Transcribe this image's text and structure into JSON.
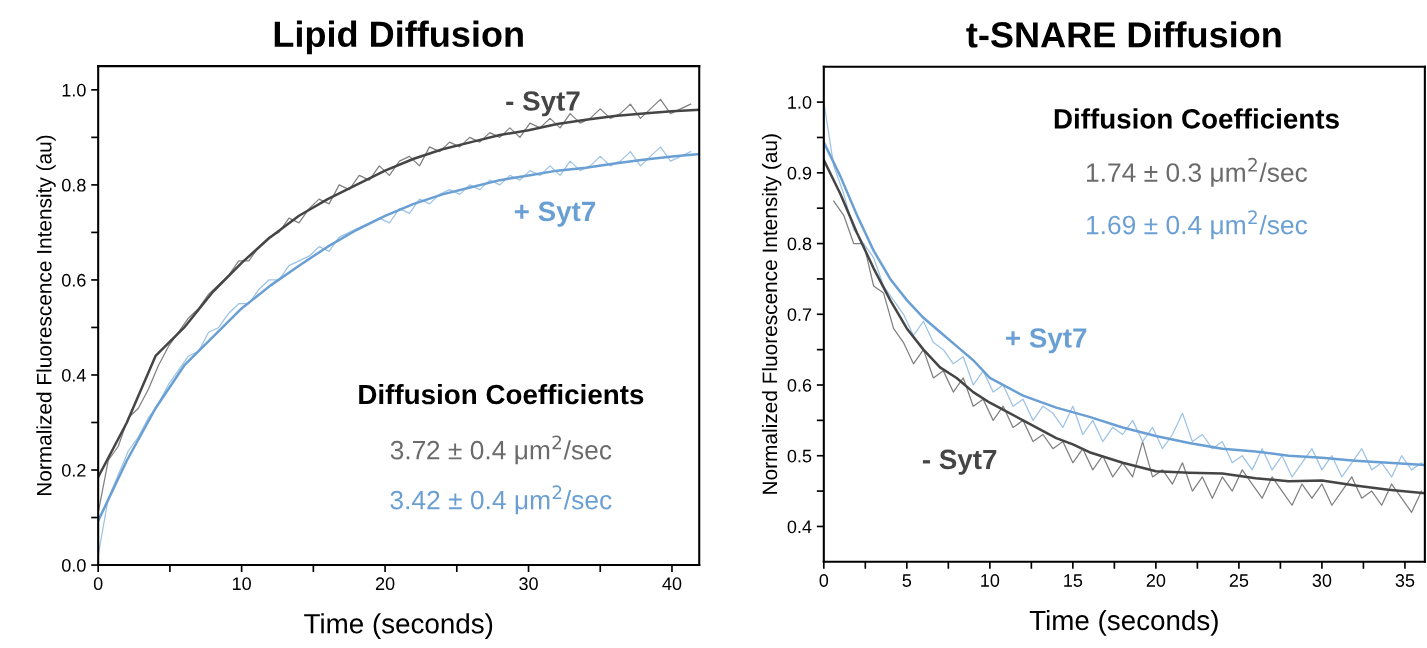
{
  "chart_data": [
    {
      "type": "line",
      "title": "Lipid Diffusion",
      "xlabel": "Time (seconds)",
      "ylabel": "Normalized Fluorescence Intensity (au)",
      "xlim": [
        0,
        41.9
      ],
      "ylim": [
        0,
        1.05
      ],
      "xticks": [
        0,
        {
          "value": 5,
          "label": null
        },
        10,
        {
          "value": 15,
          "label": null
        },
        20,
        {
          "value": 25,
          "label": null
        },
        30,
        {
          "value": 35,
          "label": null
        },
        40
      ],
      "yticks": [
        {
          "value": 0,
          "label": "0.0"
        },
        {
          "value": 0.1,
          "label": null
        },
        0.2,
        {
          "value": 0.3,
          "label": null
        },
        0.4,
        {
          "value": 0.5,
          "label": null
        },
        0.6,
        {
          "value": 0.7,
          "label": null
        },
        0.8,
        {
          "value": 0.9,
          "label": null
        },
        {
          "value": 1.0,
          "label": "1.0"
        }
      ],
      "annotations": [
        "Diffusion Coefficients",
        "3.72 ± 0.4 μm$^{2}$/sec",
        "3.42 ± 0.4 μm$^{2}$/sec"
      ],
      "series": [
        {
          "color": "#808080",
          "x": [
            0,
            0.7,
            1.4,
            2.1,
            2.8,
            3.5,
            4.2,
            4.9,
            5.6,
            6.3,
            7,
            7.7,
            8.4,
            9.1,
            9.8,
            10.5,
            11.2,
            11.9,
            12.6,
            13.3,
            14,
            14.7,
            15.4,
            16.1,
            16.8,
            17.5,
            18.2,
            18.9,
            19.6,
            20.3,
            21,
            21.7,
            22.4,
            23.1,
            23.8,
            24.5,
            25.2,
            25.9,
            26.6,
            27.3,
            28,
            28.7,
            29.4,
            30.1,
            30.8,
            31.5,
            32.2,
            32.9,
            33.6,
            34.3,
            35,
            35.7,
            36.4,
            37.1,
            37.8,
            38.5,
            39.2,
            39.9,
            40.6,
            41.3
          ],
          "values": [
            0.11,
            0.22,
            0.25,
            0.31,
            0.33,
            0.37,
            0.42,
            0.46,
            0.49,
            0.52,
            0.54,
            0.57,
            0.59,
            0.61,
            0.64,
            0.64,
            0.67,
            0.69,
            0.7,
            0.73,
            0.72,
            0.75,
            0.77,
            0.76,
            0.8,
            0.79,
            0.82,
            0.81,
            0.84,
            0.82,
            0.85,
            0.86,
            0.84,
            0.88,
            0.87,
            0.89,
            0.88,
            0.9,
            0.89,
            0.91,
            0.9,
            0.92,
            0.9,
            0.93,
            0.92,
            0.94,
            0.92,
            0.95,
            0.93,
            0.94,
            0.96,
            0.94,
            0.95,
            0.97,
            0.94,
            0.96,
            0.98,
            0.95,
            0.96,
            0.97
          ]
        },
        {
          "color": "#9dc3e6",
          "x": [
            0,
            0.7,
            1.4,
            2.1,
            2.8,
            3.5,
            4.2,
            4.9,
            5.6,
            6.3,
            7,
            7.7,
            8.4,
            9.1,
            9.8,
            10.5,
            11.2,
            11.9,
            12.6,
            13.3,
            14,
            14.7,
            15.4,
            16.1,
            16.8,
            17.5,
            18.2,
            18.9,
            19.6,
            20.3,
            21,
            21.7,
            22.4,
            23.1,
            23.8,
            24.5,
            25.2,
            25.9,
            26.6,
            27.3,
            28,
            28.7,
            29.4,
            30.1,
            30.8,
            31.5,
            32.2,
            32.9,
            33.6,
            34.3,
            35,
            35.7,
            36.4,
            37.1,
            37.8,
            38.5,
            39.2,
            39.9,
            40.6,
            41.3
          ],
          "values": [
            0.02,
            0.14,
            0.19,
            0.24,
            0.27,
            0.31,
            0.34,
            0.38,
            0.41,
            0.44,
            0.45,
            0.49,
            0.5,
            0.53,
            0.55,
            0.55,
            0.58,
            0.6,
            0.6,
            0.63,
            0.64,
            0.65,
            0.67,
            0.66,
            0.69,
            0.7,
            0.71,
            0.72,
            0.73,
            0.72,
            0.75,
            0.74,
            0.77,
            0.76,
            0.78,
            0.79,
            0.78,
            0.8,
            0.79,
            0.81,
            0.8,
            0.82,
            0.81,
            0.83,
            0.82,
            0.84,
            0.82,
            0.85,
            0.83,
            0.84,
            0.86,
            0.84,
            0.85,
            0.87,
            0.84,
            0.86,
            0.88,
            0.85,
            0.86,
            0.87
          ]
        },
        {
          "name": "- Syt7",
          "color": "#454545",
          "x": [
            0,
            2,
            4,
            6,
            8,
            10,
            12,
            14,
            16,
            18,
            20,
            22,
            24,
            26,
            28,
            30,
            32,
            34,
            36,
            38,
            40,
            41.9
          ],
          "values": [
            0.185,
            0.3,
            0.44,
            0.5,
            0.575,
            0.636,
            0.69,
            0.735,
            0.77,
            0.8,
            0.83,
            0.855,
            0.875,
            0.89,
            0.905,
            0.915,
            0.928,
            0.937,
            0.945,
            0.95,
            0.955,
            0.958
          ]
        },
        {
          "name": "+ Syt7",
          "color": "#6a9fd4",
          "x": [
            0,
            2,
            4,
            6,
            8,
            10,
            12,
            14,
            16,
            18,
            20,
            22,
            24,
            26,
            28,
            30,
            32,
            34,
            36,
            38,
            40,
            41.9
          ],
          "values": [
            0.093,
            0.22,
            0.33,
            0.42,
            0.48,
            0.54,
            0.588,
            0.63,
            0.67,
            0.705,
            0.735,
            0.76,
            0.78,
            0.795,
            0.81,
            0.82,
            0.83,
            0.836,
            0.845,
            0.853,
            0.86,
            0.865
          ]
        }
      ]
    },
    {
      "type": "line",
      "title": "t-SNARE Diffusion",
      "xlabel": "Time (seconds)",
      "ylabel": "Normalized Fluorescence Intensity (au)",
      "xlim": [
        0,
        36.2
      ],
      "ylim": [
        0.35,
        1.05
      ],
      "xticks": [
        0,
        {
          "value": 2.5,
          "label": null
        },
        5,
        {
          "value": 7.5,
          "label": null
        },
        10,
        {
          "value": 12.5,
          "label": null
        },
        15,
        {
          "value": 17.5,
          "label": null
        },
        20,
        {
          "value": 22.5,
          "label": null
        },
        25,
        {
          "value": 27.5,
          "label": null
        },
        30,
        {
          "value": 32.5,
          "label": null
        },
        35
      ],
      "yticks": [
        0.4,
        {
          "value": 0.45,
          "label": null
        },
        0.5,
        {
          "value": 0.55,
          "label": null
        },
        0.6,
        {
          "value": 0.65,
          "label": null
        },
        0.7,
        {
          "value": 0.75,
          "label": null
        },
        0.8,
        {
          "value": 0.85,
          "label": null
        },
        0.9,
        {
          "value": 0.95,
          "label": null
        },
        {
          "value": 1.0,
          "label": "1.0"
        }
      ],
      "annotations": [
        "Diffusion Coefficients",
        "1.74 ± 0.3 μm$^{2}$/sec",
        "1.69 ± 0.4 μm$^{2}$/sec"
      ],
      "series": [
        {
          "color": "#808080",
          "x": [
            0.6,
            1.2,
            1.8,
            2.4,
            3,
            3.6,
            4.2,
            4.8,
            5.4,
            6,
            6.6,
            7.2,
            7.8,
            8.4,
            9,
            9.6,
            10.2,
            10.8,
            11.4,
            12,
            12.6,
            13.2,
            13.8,
            14.4,
            15,
            15.6,
            16.2,
            16.8,
            17.4,
            18,
            18.6,
            19.2,
            19.8,
            20.4,
            21,
            21.6,
            22.2,
            22.8,
            23.4,
            24,
            24.6,
            25.2,
            25.8,
            26.4,
            27,
            27.6,
            28.2,
            28.8,
            29.4,
            30,
            30.6,
            31.2,
            31.8,
            32.4,
            33,
            33.6,
            34.2,
            34.8,
            35.4,
            36
          ],
          "values": [
            0.86,
            0.84,
            0.8,
            0.8,
            0.74,
            0.73,
            0.68,
            0.66,
            0.63,
            0.65,
            0.61,
            0.62,
            0.59,
            0.61,
            0.57,
            0.58,
            0.55,
            0.57,
            0.54,
            0.55,
            0.52,
            0.53,
            0.51,
            0.52,
            0.49,
            0.51,
            0.48,
            0.5,
            0.47,
            0.49,
            0.47,
            0.52,
            0.47,
            0.48,
            0.46,
            0.49,
            0.45,
            0.47,
            0.44,
            0.47,
            0.45,
            0.48,
            0.46,
            0.44,
            0.47,
            0.45,
            0.43,
            0.46,
            0.44,
            0.46,
            0.43,
            0.45,
            0.47,
            0.44,
            0.45,
            0.43,
            0.46,
            0.44,
            0.42,
            0.45
          ]
        },
        {
          "color": "#9dc3e6",
          "x": [
            0,
            0.6,
            1.2,
            1.8,
            2.4,
            3,
            3.6,
            4.2,
            4.8,
            5.4,
            6,
            6.6,
            7.2,
            7.8,
            8.4,
            9,
            9.6,
            10.2,
            10.8,
            11.4,
            12,
            12.6,
            13.2,
            13.8,
            14.4,
            15,
            15.6,
            16.2,
            16.8,
            17.4,
            18,
            18.6,
            19.2,
            19.8,
            20.4,
            21,
            21.6,
            22.2,
            22.8,
            23.4,
            24,
            24.6,
            25.2,
            25.8,
            26.4,
            27,
            27.6,
            28.2,
            28.8,
            29.4,
            30,
            30.6,
            31.2,
            31.8,
            32.4,
            33,
            33.6,
            34.2,
            34.8,
            35.4,
            36
          ],
          "values": [
            1.0,
            0.91,
            0.87,
            0.82,
            0.8,
            0.78,
            0.74,
            0.72,
            0.7,
            0.67,
            0.69,
            0.66,
            0.65,
            0.63,
            0.64,
            0.6,
            0.62,
            0.59,
            0.6,
            0.57,
            0.58,
            0.55,
            0.57,
            0.56,
            0.54,
            0.57,
            0.53,
            0.55,
            0.52,
            0.54,
            0.53,
            0.55,
            0.52,
            0.54,
            0.51,
            0.53,
            0.56,
            0.52,
            0.53,
            0.51,
            0.52,
            0.49,
            0.5,
            0.48,
            0.51,
            0.48,
            0.5,
            0.47,
            0.49,
            0.51,
            0.48,
            0.5,
            0.47,
            0.49,
            0.51,
            0.48,
            0.49,
            0.47,
            0.5,
            0.48,
            0.49
          ]
        },
        {
          "name": "- Syt7",
          "color": "#454545",
          "x": [
            0,
            1,
            2,
            3,
            4,
            5,
            6,
            7,
            8,
            9,
            10,
            12,
            14,
            15,
            16,
            18,
            20,
            22,
            24,
            26,
            28,
            30,
            32,
            34,
            36.2
          ],
          "values": [
            0.918,
            0.87,
            0.815,
            0.765,
            0.72,
            0.68,
            0.65,
            0.625,
            0.61,
            0.59,
            0.575,
            0.55,
            0.525,
            0.516,
            0.505,
            0.49,
            0.478,
            0.476,
            0.475,
            0.468,
            0.464,
            0.465,
            0.458,
            0.452,
            0.447
          ]
        },
        {
          "name": "+ Syt7",
          "color": "#6a9fd4",
          "x": [
            0,
            1,
            2,
            3,
            4,
            5,
            6,
            7,
            8,
            9,
            10,
            12,
            14,
            16,
            18,
            20,
            22,
            24,
            26,
            28,
            30,
            32,
            34,
            36.2
          ],
          "values": [
            0.943,
            0.895,
            0.84,
            0.79,
            0.75,
            0.72,
            0.695,
            0.675,
            0.655,
            0.635,
            0.61,
            0.585,
            0.568,
            0.555,
            0.54,
            0.528,
            0.518,
            0.51,
            0.506,
            0.5,
            0.497,
            0.493,
            0.49,
            0.487
          ]
        }
      ]
    }
  ]
}
